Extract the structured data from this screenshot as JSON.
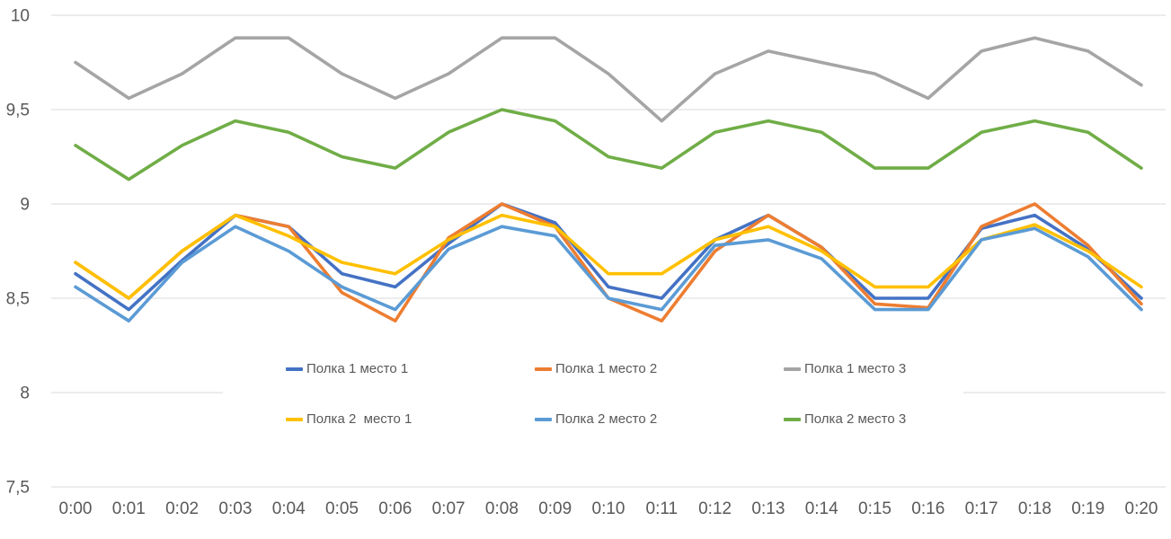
{
  "chart_data": {
    "type": "line",
    "title": "",
    "xlabel": "",
    "ylabel": "",
    "categories": [
      "0:00",
      "0:01",
      "0:02",
      "0:03",
      "0:04",
      "0:05",
      "0:06",
      "0:07",
      "0:08",
      "0:09",
      "0:10",
      "0:11",
      "0:12",
      "0:13",
      "0:14",
      "0:15",
      "0:16",
      "0:17",
      "0:18",
      "0:19",
      "0:20"
    ],
    "series": [
      {
        "name": "Полка 1 место 1",
        "color": "#4472C4",
        "values": [
          8.63,
          8.44,
          8.7,
          8.94,
          8.88,
          8.63,
          8.56,
          8.79,
          9.0,
          8.9,
          8.56,
          8.5,
          8.81,
          8.94,
          8.77,
          8.5,
          8.5,
          8.87,
          8.94,
          8.76,
          8.5
        ]
      },
      {
        "name": "Полка 1 место 2",
        "color": "#ED7D31",
        "values": [
          8.69,
          8.5,
          8.75,
          8.94,
          8.88,
          8.53,
          8.38,
          8.82,
          9.0,
          8.88,
          8.5,
          8.38,
          8.75,
          8.94,
          8.77,
          8.47,
          8.45,
          8.88,
          9.0,
          8.78,
          8.47
        ]
      },
      {
        "name": "Полка 1 место 3",
        "color": "#A5A5A5",
        "values": [
          9.75,
          9.56,
          9.69,
          9.88,
          9.88,
          9.69,
          9.56,
          9.69,
          9.88,
          9.88,
          9.69,
          9.44,
          9.69,
          9.81,
          9.75,
          9.69,
          9.56,
          9.81,
          9.88,
          9.81,
          9.63
        ]
      },
      {
        "name": "Полка 2  место 1",
        "color": "#FFC000",
        "values": [
          8.69,
          8.5,
          8.75,
          8.94,
          8.83,
          8.69,
          8.63,
          8.81,
          8.94,
          8.88,
          8.63,
          8.63,
          8.81,
          8.88,
          8.75,
          8.56,
          8.56,
          8.81,
          8.89,
          8.75,
          8.56
        ]
      },
      {
        "name": "Полка 2 место 2",
        "color": "#5B9BD5",
        "values": [
          8.56,
          8.38,
          8.69,
          8.88,
          8.75,
          8.56,
          8.44,
          8.76,
          8.88,
          8.83,
          8.5,
          8.44,
          8.78,
          8.81,
          8.71,
          8.44,
          8.44,
          8.81,
          8.87,
          8.72,
          8.44
        ]
      },
      {
        "name": "Полка 2 место 3",
        "color": "#70AD47",
        "values": [
          9.31,
          9.13,
          9.31,
          9.44,
          9.38,
          9.25,
          9.19,
          9.38,
          9.5,
          9.44,
          9.25,
          9.19,
          9.38,
          9.44,
          9.38,
          9.19,
          9.19,
          9.38,
          9.44,
          9.38,
          9.19
        ]
      }
    ],
    "ylim": [
      7.5,
      10
    ],
    "yticks": [
      10,
      9.5,
      9,
      8.5,
      8,
      7.5
    ],
    "ytick_labels": [
      "10",
      "9,5",
      "9",
      "8,5",
      "8",
      "7,5"
    ],
    "grid": "horizontal",
    "gridline_color": "#D9D9D9",
    "tick_label_color": "#595959",
    "background": "#FFFFFF",
    "legend_position": "inside-bottom-two-rows"
  }
}
